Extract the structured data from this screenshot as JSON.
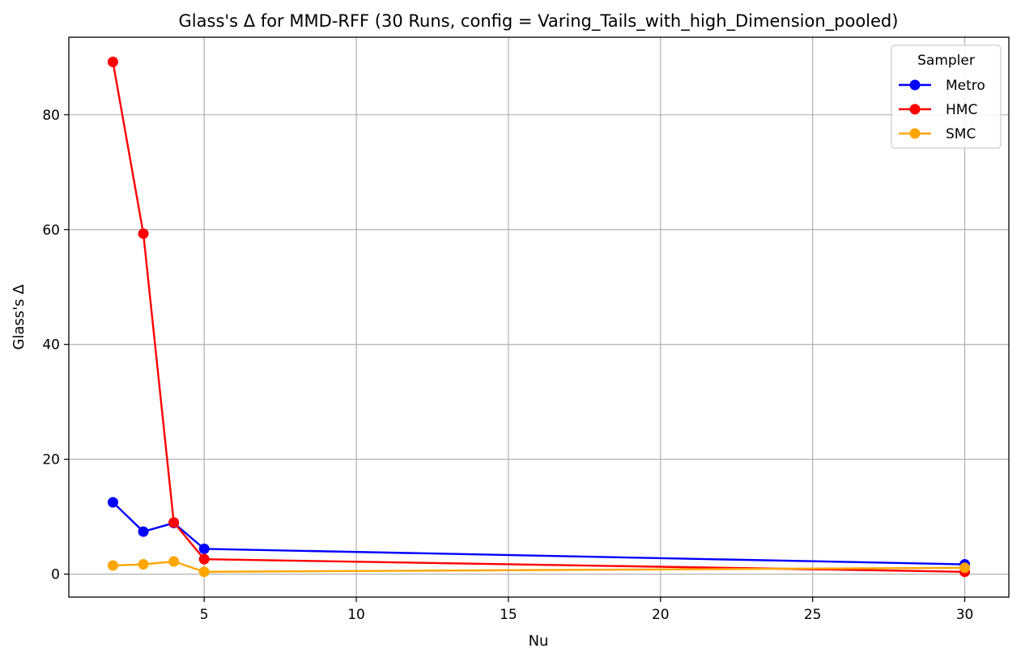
{
  "chart_data": {
    "type": "line",
    "title": "Glass's Δ for MMD-RFF (30 Runs, config = Varing_Tails_with_high_Dimension_pooled)",
    "xlabel": "Nu",
    "ylabel": "Glass's Δ",
    "xlim": [
      0.55,
      31.45
    ],
    "ylim": [
      -4.0,
      93.5
    ],
    "xticks": [
      5,
      10,
      15,
      20,
      25,
      30
    ],
    "yticks": [
      0,
      20,
      40,
      60,
      80
    ],
    "grid": true,
    "legend": {
      "title": "Sampler",
      "position": "top-right"
    },
    "x": [
      2,
      3,
      4,
      5,
      30
    ],
    "series": [
      {
        "name": "Metro",
        "color": "#0000ff",
        "values": [
          12.5,
          7.4,
          8.9,
          4.4,
          1.7
        ]
      },
      {
        "name": "HMC",
        "color": "#ff0000",
        "values": [
          89.2,
          59.3,
          9.0,
          2.6,
          0.4
        ]
      },
      {
        "name": "SMC",
        "color": "#ffa500",
        "values": [
          1.5,
          1.7,
          2.2,
          0.4,
          1.1
        ]
      }
    ]
  }
}
